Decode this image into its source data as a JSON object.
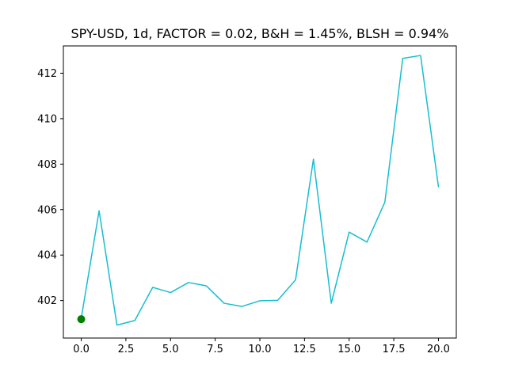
{
  "chart_data": {
    "type": "line",
    "title": "SPY-USD, 1d, FACTOR = 0.02, B&H = 1.45%, BLSH = 0.94%",
    "xlabel": "",
    "ylabel": "",
    "xlim": [
      -1.0,
      21.0
    ],
    "ylim": [
      400.35,
      413.2
    ],
    "grid": false,
    "x_ticks": [
      0.0,
      2.5,
      5.0,
      7.5,
      10.0,
      12.5,
      15.0,
      17.5,
      20.0
    ],
    "x_tick_labels": [
      "0.0",
      "2.5",
      "5.0",
      "7.5",
      "10.0",
      "12.5",
      "15.0",
      "17.5",
      "20.0"
    ],
    "y_ticks": [
      402,
      404,
      406,
      408,
      410,
      412
    ],
    "y_tick_labels": [
      "402",
      "404",
      "406",
      "408",
      "410",
      "412"
    ],
    "series": [
      {
        "color": "#17becf",
        "x": [
          0,
          1,
          2,
          3,
          4,
          5,
          6,
          7,
          8,
          9,
          10,
          11,
          12,
          13,
          14,
          15,
          16,
          17,
          18,
          19,
          20
        ],
        "values": [
          401.22,
          405.95,
          400.92,
          401.12,
          402.58,
          402.35,
          402.79,
          402.65,
          401.88,
          401.74,
          401.99,
          402.01,
          402.91,
          408.22,
          401.88,
          405.01,
          404.57,
          406.33,
          412.65,
          412.78,
          407.01
        ]
      }
    ],
    "markers": [
      {
        "x": 0,
        "y": 401.18,
        "color": "#008000"
      }
    ]
  }
}
